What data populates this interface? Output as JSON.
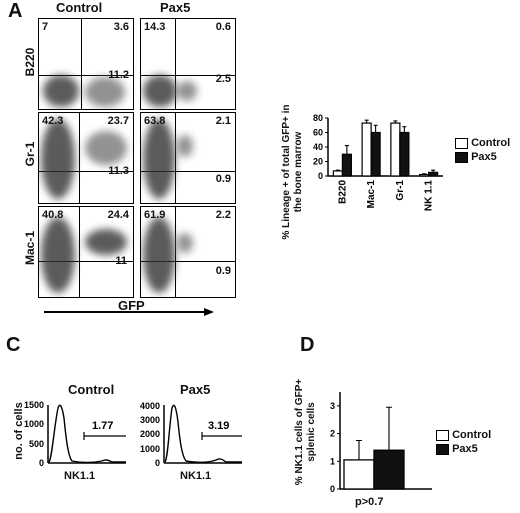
{
  "panel_a": {
    "letter": "A",
    "columns": [
      "Control",
      "Pax5"
    ],
    "x_label": "GFP",
    "rows": [
      {
        "marker": "B220",
        "control": [
          "7",
          "3.6",
          "11.2"
        ],
        "pax5": [
          "14.3",
          "0.6",
          "2.5"
        ]
      },
      {
        "marker": "Gr-1",
        "control": [
          "42.3",
          "23.7",
          "11.3"
        ],
        "pax5": [
          "63.8",
          "2.1",
          "0.9"
        ]
      },
      {
        "marker": "Mac-1",
        "control": [
          "40.8",
          "24.4",
          "11"
        ],
        "pax5": [
          "61.9",
          "2.2",
          "0.9"
        ]
      }
    ]
  },
  "panel_c": {
    "letter": "C",
    "y_label": "no. of cells",
    "x_label": "NK1.1",
    "control": {
      "title": "Control",
      "gate_value": "1.77",
      "y_ticks": [
        "0",
        "500",
        "1000",
        "1500"
      ]
    },
    "pax5": {
      "title": "Pax5",
      "gate_value": "3.19",
      "y_ticks": [
        "0",
        "1000",
        "2000",
        "3000",
        "4000"
      ]
    }
  },
  "panel_d": {
    "letter": "D",
    "p_value": "p>0.7"
  },
  "chart_data": [
    {
      "type": "bar",
      "ylabel": "% Lineage + of total GFP+ in the bone marrow",
      "categories": [
        "B220",
        "Mac-1",
        "Gr-1",
        "NK 1.1"
      ],
      "series": [
        {
          "name": "Control",
          "values": [
            7,
            73,
            73,
            2
          ],
          "errors": [
            1,
            4,
            3,
            1
          ],
          "color": "#ffffff"
        },
        {
          "name": "Pax5",
          "values": [
            30,
            60,
            60,
            5
          ],
          "errors": [
            12,
            10,
            8,
            3
          ],
          "color": "#111111"
        }
      ],
      "ylim": [
        0,
        80
      ],
      "y_ticks": [
        "0",
        "20",
        "40",
        "60",
        "80"
      ],
      "legend": "right"
    },
    {
      "type": "bar",
      "ylabel": "% NK1.1 cells of GFP+ splenic cells",
      "categories": [
        ""
      ],
      "series": [
        {
          "name": "Control",
          "values": [
            1.05
          ],
          "errors": [
            0.7
          ],
          "color": "#ffffff"
        },
        {
          "name": "Pax5",
          "values": [
            1.4
          ],
          "errors": [
            1.55
          ],
          "color": "#111111"
        }
      ],
      "ylim": [
        0,
        3.5
      ],
      "y_ticks": [
        "0",
        "1",
        "2",
        "3"
      ],
      "legend": "right"
    }
  ]
}
